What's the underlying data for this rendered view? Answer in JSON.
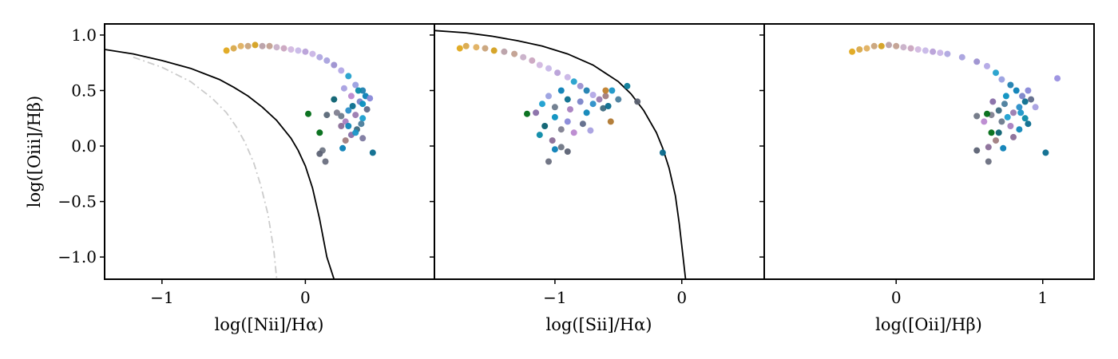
{
  "chart_data": [
    {
      "type": "scatter",
      "xlabel": "log([Nii]/Hα)",
      "ylabel": "log([Oiii]/Hβ)",
      "xlim": [
        -1.4,
        0.9
      ],
      "ylim": [
        -1.2,
        1.1
      ],
      "xticks": [
        {
          "value": -1,
          "label": "−1"
        },
        {
          "value": 0,
          "label": "0"
        }
      ],
      "yticks": [
        {
          "value": 1.0,
          "label": "1.0"
        },
        {
          "value": 0.5,
          "label": "0.5"
        },
        {
          "value": 0.0,
          "label": "0.0"
        },
        {
          "value": -0.5,
          "label": "−0.5"
        },
        {
          "value": -1.0,
          "label": "−1.0"
        }
      ],
      "grid": false,
      "curves": [
        {
          "style": "solid",
          "color": "#000000",
          "x": [
            -1.4,
            -1.2,
            -1.0,
            -0.8,
            -0.6,
            -0.5,
            -0.4,
            -0.3,
            -0.2,
            -0.15,
            -0.1,
            -0.05,
            0.0,
            0.05,
            0.1,
            0.15,
            0.2
          ],
          "y": [
            0.87,
            0.83,
            0.77,
            0.7,
            0.6,
            0.53,
            0.45,
            0.35,
            0.23,
            0.15,
            0.07,
            -0.04,
            -0.18,
            -0.38,
            -0.66,
            -1.0,
            -1.2
          ]
        },
        {
          "style": "dashdot",
          "color": "#cccccc",
          "x": [
            -1.2,
            -1.0,
            -0.8,
            -0.65,
            -0.55,
            -0.48,
            -0.42,
            -0.36,
            -0.31,
            -0.26,
            -0.22,
            -0.2
          ],
          "y": [
            0.8,
            0.71,
            0.58,
            0.43,
            0.3,
            0.17,
            0.03,
            -0.15,
            -0.36,
            -0.62,
            -0.94,
            -1.2
          ]
        }
      ],
      "points": [
        {
          "x": -0.55,
          "y": 0.86,
          "color": "#e0a81c"
        },
        {
          "x": -0.5,
          "y": 0.88,
          "color": "#d9a94a"
        },
        {
          "x": -0.45,
          "y": 0.9,
          "color": "#e0b060"
        },
        {
          "x": -0.4,
          "y": 0.9,
          "color": "#c9a37a"
        },
        {
          "x": -0.35,
          "y": 0.91,
          "color": "#d4a020"
        },
        {
          "x": -0.3,
          "y": 0.9,
          "color": "#b9a0a8"
        },
        {
          "x": -0.25,
          "y": 0.9,
          "color": "#c2a090"
        },
        {
          "x": -0.2,
          "y": 0.89,
          "color": "#c8b0c8"
        },
        {
          "x": -0.15,
          "y": 0.88,
          "color": "#caa5c0"
        },
        {
          "x": -0.1,
          "y": 0.87,
          "color": "#d2b8e0"
        },
        {
          "x": -0.05,
          "y": 0.86,
          "color": "#c8b8e8"
        },
        {
          "x": 0.0,
          "y": 0.85,
          "color": "#b8a0d8"
        },
        {
          "x": 0.05,
          "y": 0.83,
          "color": "#c9b5e6"
        },
        {
          "x": 0.1,
          "y": 0.8,
          "color": "#b0a8e0"
        },
        {
          "x": 0.15,
          "y": 0.77,
          "color": "#a9a2de"
        },
        {
          "x": 0.2,
          "y": 0.73,
          "color": "#9c90d0"
        },
        {
          "x": 0.25,
          "y": 0.68,
          "color": "#b3a8e6"
        },
        {
          "x": 0.3,
          "y": 0.63,
          "color": "#23a0cc"
        },
        {
          "x": 0.35,
          "y": 0.55,
          "color": "#9aa0e0"
        },
        {
          "x": 0.4,
          "y": 0.5,
          "color": "#1f7fb0"
        },
        {
          "x": 0.42,
          "y": 0.45,
          "color": "#0b7fb6"
        },
        {
          "x": 0.38,
          "y": 0.4,
          "color": "#7a84c8"
        },
        {
          "x": 0.33,
          "y": 0.36,
          "color": "#0a6e8e"
        },
        {
          "x": 0.3,
          "y": 0.32,
          "color": "#2a8ec8"
        },
        {
          "x": 0.35,
          "y": 0.28,
          "color": "#9a7bb0"
        },
        {
          "x": 0.4,
          "y": 0.25,
          "color": "#1b9fd0"
        },
        {
          "x": 0.25,
          "y": 0.27,
          "color": "#6b7a8c"
        },
        {
          "x": 0.28,
          "y": 0.22,
          "color": "#a880c0"
        },
        {
          "x": 0.3,
          "y": 0.18,
          "color": "#0f86b8"
        },
        {
          "x": 0.36,
          "y": 0.15,
          "color": "#3c6a80"
        },
        {
          "x": 0.32,
          "y": 0.1,
          "color": "#886ea8"
        },
        {
          "x": 0.4,
          "y": 0.38,
          "color": "#0890c0"
        },
        {
          "x": 0.45,
          "y": 0.43,
          "color": "#8888d8"
        },
        {
          "x": 0.43,
          "y": 0.33,
          "color": "#5f6a8a"
        },
        {
          "x": 0.2,
          "y": 0.42,
          "color": "#0a6070"
        },
        {
          "x": 0.22,
          "y": 0.3,
          "color": "#7f8090"
        },
        {
          "x": 0.15,
          "y": 0.28,
          "color": "#5a6878"
        },
        {
          "x": 0.32,
          "y": 0.45,
          "color": "#ba88d0"
        },
        {
          "x": 0.37,
          "y": 0.5,
          "color": "#0a8aa8"
        },
        {
          "x": 0.27,
          "y": 0.52,
          "color": "#a8a0e0"
        },
        {
          "x": 0.25,
          "y": 0.18,
          "color": "#8a6e98"
        },
        {
          "x": 0.28,
          "y": 0.05,
          "color": "#a07d80"
        },
        {
          "x": 0.35,
          "y": 0.12,
          "color": "#1a96c8"
        },
        {
          "x": 0.39,
          "y": 0.2,
          "color": "#4a7d9c"
        },
        {
          "x": 0.02,
          "y": 0.29,
          "color": "#006b16"
        },
        {
          "x": 0.1,
          "y": 0.12,
          "color": "#006b16"
        },
        {
          "x": 0.12,
          "y": -0.04,
          "color": "#6f7684"
        },
        {
          "x": 0.1,
          "y": -0.07,
          "color": "#5c6274"
        },
        {
          "x": 0.14,
          "y": -0.14,
          "color": "#6a6f80"
        },
        {
          "x": 0.26,
          "y": -0.02,
          "color": "#0b80b6"
        },
        {
          "x": 0.4,
          "y": 0.07,
          "color": "#7d7aa0"
        },
        {
          "x": 0.47,
          "y": -0.06,
          "color": "#0a6c8e"
        }
      ]
    },
    {
      "type": "scatter",
      "xlabel": "log([Sii]/Hα)",
      "ylabel": "",
      "xlim": [
        -1.95,
        0.65
      ],
      "ylim": [
        -1.2,
        1.1
      ],
      "xticks": [
        {
          "value": -1,
          "label": "−1"
        },
        {
          "value": 0,
          "label": "0"
        }
      ],
      "yticks": [
        {
          "value": 1.0,
          "label": ""
        },
        {
          "value": 0.5,
          "label": ""
        },
        {
          "value": 0.0,
          "label": ""
        },
        {
          "value": -0.5,
          "label": ""
        },
        {
          "value": -1.0,
          "label": ""
        }
      ],
      "grid": false,
      "curves": [
        {
          "style": "solid",
          "color": "#000000",
          "x": [
            -1.95,
            -1.7,
            -1.5,
            -1.3,
            -1.1,
            -0.9,
            -0.7,
            -0.5,
            -0.4,
            -0.3,
            -0.2,
            -0.15,
            -0.1,
            -0.05,
            -0.02,
            0.0,
            0.03
          ],
          "y": [
            1.04,
            1.02,
            0.99,
            0.95,
            0.9,
            0.83,
            0.73,
            0.58,
            0.47,
            0.32,
            0.12,
            -0.02,
            -0.2,
            -0.45,
            -0.7,
            -0.9,
            -1.2
          ]
        }
      ],
      "points": [
        {
          "x": -1.75,
          "y": 0.88,
          "color": "#e0a81c"
        },
        {
          "x": -1.7,
          "y": 0.9,
          "color": "#d9a94a"
        },
        {
          "x": -1.62,
          "y": 0.89,
          "color": "#e0b060"
        },
        {
          "x": -1.55,
          "y": 0.88,
          "color": "#c9a37a"
        },
        {
          "x": -1.48,
          "y": 0.86,
          "color": "#d4a020"
        },
        {
          "x": -1.4,
          "y": 0.85,
          "color": "#b9a0a8"
        },
        {
          "x": -1.32,
          "y": 0.83,
          "color": "#c2a090"
        },
        {
          "x": -1.25,
          "y": 0.8,
          "color": "#c8b0c8"
        },
        {
          "x": -1.18,
          "y": 0.77,
          "color": "#caa5c0"
        },
        {
          "x": -1.12,
          "y": 0.73,
          "color": "#d2b8e0"
        },
        {
          "x": -1.05,
          "y": 0.7,
          "color": "#c8b8e8"
        },
        {
          "x": -0.98,
          "y": 0.66,
          "color": "#b8a0d8"
        },
        {
          "x": -0.9,
          "y": 0.62,
          "color": "#c9b5e6"
        },
        {
          "x": -0.85,
          "y": 0.58,
          "color": "#23a0cc"
        },
        {
          "x": -0.8,
          "y": 0.54,
          "color": "#9c90d0"
        },
        {
          "x": -0.75,
          "y": 0.5,
          "color": "#1f7fb0"
        },
        {
          "x": -0.7,
          "y": 0.46,
          "color": "#b3a8e6"
        },
        {
          "x": -0.95,
          "y": 0.5,
          "color": "#0b7fb6"
        },
        {
          "x": -1.05,
          "y": 0.45,
          "color": "#9aa0e0"
        },
        {
          "x": -0.9,
          "y": 0.42,
          "color": "#0a6e8e"
        },
        {
          "x": -0.8,
          "y": 0.4,
          "color": "#7a84c8"
        },
        {
          "x": -0.7,
          "y": 0.38,
          "color": "#2a8ec8"
        },
        {
          "x": -0.65,
          "y": 0.42,
          "color": "#9a7bb0"
        },
        {
          "x": -1.1,
          "y": 0.38,
          "color": "#1b9fd0"
        },
        {
          "x": -1.0,
          "y": 0.35,
          "color": "#6b7a8c"
        },
        {
          "x": -0.88,
          "y": 0.33,
          "color": "#a880c0"
        },
        {
          "x": -0.75,
          "y": 0.3,
          "color": "#0f86b8"
        },
        {
          "x": -0.62,
          "y": 0.34,
          "color": "#3c6a80"
        },
        {
          "x": -1.15,
          "y": 0.3,
          "color": "#886ea8"
        },
        {
          "x": -1.0,
          "y": 0.26,
          "color": "#0890c0"
        },
        {
          "x": -0.9,
          "y": 0.22,
          "color": "#8888d8"
        },
        {
          "x": -0.78,
          "y": 0.2,
          "color": "#5f6a8a"
        },
        {
          "x": -1.08,
          "y": 0.18,
          "color": "#0a6070"
        },
        {
          "x": -0.95,
          "y": 0.15,
          "color": "#7f8090"
        },
        {
          "x": -0.85,
          "y": 0.12,
          "color": "#ba88d0"
        },
        {
          "x": -1.12,
          "y": 0.1,
          "color": "#0a8aa8"
        },
        {
          "x": -0.72,
          "y": 0.14,
          "color": "#a8a0e0"
        },
        {
          "x": -1.02,
          "y": 0.05,
          "color": "#8a6e98"
        },
        {
          "x": -0.6,
          "y": 0.45,
          "color": "#a07d80"
        },
        {
          "x": -0.55,
          "y": 0.5,
          "color": "#1a96c8"
        },
        {
          "x": -0.5,
          "y": 0.42,
          "color": "#4a7d9c"
        },
        {
          "x": -0.58,
          "y": 0.36,
          "color": "#0a6c8e"
        },
        {
          "x": -1.22,
          "y": 0.29,
          "color": "#006b16"
        },
        {
          "x": -1.0,
          "y": -0.03,
          "color": "#0b80b6"
        },
        {
          "x": -0.95,
          "y": -0.01,
          "color": "#6f7684"
        },
        {
          "x": -0.9,
          "y": -0.05,
          "color": "#5c6274"
        },
        {
          "x": -1.05,
          "y": -0.14,
          "color": "#6a6f80"
        },
        {
          "x": -0.56,
          "y": 0.22,
          "color": "#b07830"
        },
        {
          "x": -0.35,
          "y": 0.4,
          "color": "#5a6070"
        },
        {
          "x": -0.43,
          "y": 0.54,
          "color": "#0a7c9a"
        },
        {
          "x": -0.6,
          "y": 0.5,
          "color": "#c0802c"
        },
        {
          "x": -0.15,
          "y": -0.06,
          "color": "#0a6c8e"
        }
      ]
    },
    {
      "type": "scatter",
      "xlabel": "log([Oii]/Hβ)",
      "ylabel": "",
      "xlim": [
        -0.9,
        1.35
      ],
      "ylim": [
        -1.2,
        1.1
      ],
      "xticks": [
        {
          "value": 0,
          "label": "0"
        },
        {
          "value": 1,
          "label": "1"
        }
      ],
      "yticks": [
        {
          "value": 1.0,
          "label": ""
        },
        {
          "value": 0.5,
          "label": ""
        },
        {
          "value": 0.0,
          "label": ""
        },
        {
          "value": -0.5,
          "label": ""
        },
        {
          "value": -1.0,
          "label": ""
        }
      ],
      "grid": false,
      "curves": [],
      "points": [
        {
          "x": -0.3,
          "y": 0.85,
          "color": "#e0a81c"
        },
        {
          "x": -0.25,
          "y": 0.87,
          "color": "#d9a94a"
        },
        {
          "x": -0.2,
          "y": 0.88,
          "color": "#e0b060"
        },
        {
          "x": -0.15,
          "y": 0.9,
          "color": "#c9a37a"
        },
        {
          "x": -0.1,
          "y": 0.9,
          "color": "#d4a020"
        },
        {
          "x": -0.05,
          "y": 0.91,
          "color": "#b9a0a8"
        },
        {
          "x": 0.0,
          "y": 0.9,
          "color": "#c2a090"
        },
        {
          "x": 0.05,
          "y": 0.89,
          "color": "#c8b0c8"
        },
        {
          "x": 0.1,
          "y": 0.88,
          "color": "#caa5c0"
        },
        {
          "x": 0.15,
          "y": 0.87,
          "color": "#d2b8e0"
        },
        {
          "x": 0.2,
          "y": 0.86,
          "color": "#c8b8e8"
        },
        {
          "x": 0.25,
          "y": 0.85,
          "color": "#b8a0d8"
        },
        {
          "x": 0.3,
          "y": 0.84,
          "color": "#c9b5e6"
        },
        {
          "x": 0.35,
          "y": 0.83,
          "color": "#b0a8e0"
        },
        {
          "x": 0.45,
          "y": 0.8,
          "color": "#a9a2de"
        },
        {
          "x": 0.55,
          "y": 0.76,
          "color": "#9c90d0"
        },
        {
          "x": 0.62,
          "y": 0.72,
          "color": "#b3a8e6"
        },
        {
          "x": 0.68,
          "y": 0.66,
          "color": "#23a0cc"
        },
        {
          "x": 0.72,
          "y": 0.6,
          "color": "#9aa0e0"
        },
        {
          "x": 0.78,
          "y": 0.55,
          "color": "#1f7fb0"
        },
        {
          "x": 0.82,
          "y": 0.5,
          "color": "#0b7fb6"
        },
        {
          "x": 0.86,
          "y": 0.45,
          "color": "#7a84c8"
        },
        {
          "x": 0.88,
          "y": 0.4,
          "color": "#0a6e8e"
        },
        {
          "x": 0.84,
          "y": 0.35,
          "color": "#2a8ec8"
        },
        {
          "x": 0.8,
          "y": 0.3,
          "color": "#9a7bb0"
        },
        {
          "x": 0.76,
          "y": 0.26,
          "color": "#1b9fd0"
        },
        {
          "x": 0.72,
          "y": 0.22,
          "color": "#6b7a8c"
        },
        {
          "x": 0.78,
          "y": 0.18,
          "color": "#a880c0"
        },
        {
          "x": 0.84,
          "y": 0.15,
          "color": "#0f86b8"
        },
        {
          "x": 0.7,
          "y": 0.32,
          "color": "#3c6a80"
        },
        {
          "x": 0.66,
          "y": 0.4,
          "color": "#886ea8"
        },
        {
          "x": 0.75,
          "y": 0.45,
          "color": "#0890c0"
        },
        {
          "x": 0.9,
          "y": 0.5,
          "color": "#8888d8"
        },
        {
          "x": 0.92,
          "y": 0.42,
          "color": "#5f6a8a"
        },
        {
          "x": 0.7,
          "y": 0.12,
          "color": "#0a6070"
        },
        {
          "x": 0.65,
          "y": 0.28,
          "color": "#7f8090"
        },
        {
          "x": 0.6,
          "y": 0.22,
          "color": "#ba88d0"
        },
        {
          "x": 0.88,
          "y": 0.25,
          "color": "#0a8aa8"
        },
        {
          "x": 0.95,
          "y": 0.35,
          "color": "#a8a0e0"
        },
        {
          "x": 0.8,
          "y": 0.08,
          "color": "#8a6e98"
        },
        {
          "x": 0.68,
          "y": 0.05,
          "color": "#a07d80"
        },
        {
          "x": 0.85,
          "y": 0.3,
          "color": "#1a96c8"
        },
        {
          "x": 0.74,
          "y": 0.38,
          "color": "#4a7d9c"
        },
        {
          "x": 0.9,
          "y": 0.2,
          "color": "#0a6c8e"
        },
        {
          "x": 1.1,
          "y": 0.61,
          "color": "#9a90e0"
        },
        {
          "x": 0.55,
          "y": 0.27,
          "color": "#6f7684"
        },
        {
          "x": 0.62,
          "y": 0.29,
          "color": "#006b16"
        },
        {
          "x": 0.65,
          "y": 0.12,
          "color": "#006b16"
        },
        {
          "x": 0.55,
          "y": -0.04,
          "color": "#5c6274"
        },
        {
          "x": 0.63,
          "y": -0.01,
          "color": "#8a6e98"
        },
        {
          "x": 0.73,
          "y": -0.02,
          "color": "#0b80b6"
        },
        {
          "x": 0.63,
          "y": -0.14,
          "color": "#6a6f80"
        },
        {
          "x": 1.02,
          "y": -0.06,
          "color": "#0a6c8e"
        }
      ]
    }
  ]
}
